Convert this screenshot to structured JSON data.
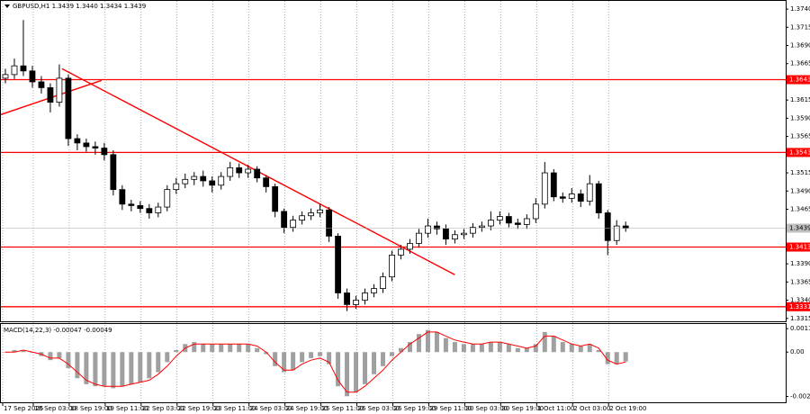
{
  "chart_data": [
    {
      "type": "candlestick",
      "title": "GBPUSD,H1  1.3439 1.3440 1.3434 1.3439",
      "xlim": [
        -0.5,
        86.8
      ],
      "xticks": [
        {
          "value": -0.3,
          "label": "17 Sep 2025"
        },
        {
          "value": 3.1,
          "label": "18 Sep 03:00"
        },
        {
          "value": 7.1,
          "label": "18 Sep 19:00"
        },
        {
          "value": 11.1,
          "label": "19 Sep 11:00"
        },
        {
          "value": 15.1,
          "label": "22 Sep 03:00"
        },
        {
          "value": 19.1,
          "label": "22 Sep 19:00"
        },
        {
          "value": 23.1,
          "label": "23 Sep 11:00"
        },
        {
          "value": 27.1,
          "label": "24 Sep 03:00"
        },
        {
          "value": 31.1,
          "label": "24 Sep 19:00"
        },
        {
          "value": 35.1,
          "label": "25 Sep 11:00"
        },
        {
          "value": 39.1,
          "label": "26 Sep 03:00"
        },
        {
          "value": 43.1,
          "label": "26 Sep 19:00"
        },
        {
          "value": 47.1,
          "label": "29 Sep 11:00"
        },
        {
          "value": 51.1,
          "label": "30 Sep 03:00"
        },
        {
          "value": 55.1,
          "label": "30 Sep 19:00"
        },
        {
          "value": 59.1,
          "label": "1 Oct 11:00"
        },
        {
          "value": 63.1,
          "label": "2 Oct 03:00"
        },
        {
          "value": 67.1,
          "label": "2 Oct 19:00"
        }
      ],
      "ylim": [
        1.3311,
        1.375
      ],
      "yticks": [
        {
          "value": 1.374,
          "label": "1.3740"
        },
        1.3715,
        {
          "value": 1.369,
          "label": "1.3690"
        },
        1.3665,
        1.3615,
        {
          "value": 1.359,
          "label": "1.3590"
        },
        1.3565,
        1.3515,
        {
          "value": 1.349,
          "label": "1.3490"
        },
        1.3465,
        {
          "value": 1.339,
          "label": "1.3390"
        },
        1.3365,
        {
          "value": 1.334,
          "label": "1.3340"
        },
        1.3315
      ],
      "levels": [
        1.3643,
        1.3543,
        1.3413,
        1.3331
      ],
      "level_color": "#ff0000",
      "trendlines": [
        {
          "x": [
            -0.5,
            10.7
          ],
          "y": [
            1.3595,
            1.3642
          ]
        },
        {
          "x": [
            6.3,
            50
          ],
          "y": [
            1.3658,
            1.3375
          ]
        }
      ],
      "color": "#000000",
      "open": [
        1.3645,
        1.365,
        1.3662,
        1.3655,
        1.364,
        1.3632,
        1.3612,
        1.3645,
        1.3562,
        1.3556,
        1.3551,
        1.3549,
        1.354,
        1.3492,
        1.3472,
        1.347,
        1.3466,
        1.346,
        1.3468,
        1.3492,
        1.35,
        1.3506,
        1.351,
        1.3504,
        1.3498,
        1.351,
        1.3522,
        1.3515,
        1.352,
        1.3508,
        1.3496,
        1.3462,
        1.344,
        1.345,
        1.3456,
        1.346,
        1.3464,
        1.3428,
        1.335,
        1.3334,
        1.334,
        1.335,
        1.3356,
        1.3372,
        1.3402,
        1.341,
        1.3418,
        1.3432,
        1.3442,
        1.3438,
        1.3424,
        1.343,
        1.3432,
        1.344,
        1.3442,
        1.345,
        1.3455,
        1.3446,
        1.3444,
        1.3452,
        1.3472,
        1.3515,
        1.3482,
        1.348,
        1.3486,
        1.3476,
        1.35,
        1.346,
        1.3422,
        1.3442
      ],
      "high": [
        1.3658,
        1.3672,
        1.3725,
        1.3662,
        1.3648,
        1.3638,
        1.3664,
        1.365,
        1.3568,
        1.3562,
        1.3558,
        1.3556,
        1.3546,
        1.3498,
        1.3478,
        1.3476,
        1.3472,
        1.3474,
        1.3498,
        1.3508,
        1.3514,
        1.3516,
        1.3518,
        1.351,
        1.3516,
        1.353,
        1.3528,
        1.3526,
        1.3524,
        1.3512,
        1.35,
        1.3466,
        1.3456,
        1.3462,
        1.3466,
        1.3472,
        1.3468,
        1.3432,
        1.3356,
        1.3346,
        1.3356,
        1.3362,
        1.3378,
        1.3408,
        1.3416,
        1.3424,
        1.3438,
        1.3452,
        1.3448,
        1.3444,
        1.3436,
        1.3438,
        1.3446,
        1.3448,
        1.3462,
        1.3462,
        1.346,
        1.3452,
        1.3458,
        1.348,
        1.353,
        1.352,
        1.3488,
        1.3494,
        1.3492,
        1.3512,
        1.3504,
        1.3464,
        1.345,
        1.3448
      ],
      "low": [
        1.3638,
        1.3644,
        1.3648,
        1.3632,
        1.3624,
        1.3598,
        1.3606,
        1.3552,
        1.3546,
        1.3544,
        1.354,
        1.3532,
        1.3484,
        1.3464,
        1.3462,
        1.346,
        1.3452,
        1.3454,
        1.3462,
        1.3486,
        1.3494,
        1.3498,
        1.3496,
        1.3488,
        1.3492,
        1.3504,
        1.3508,
        1.3508,
        1.3502,
        1.3488,
        1.3454,
        1.3432,
        1.3434,
        1.3444,
        1.345,
        1.3454,
        1.342,
        1.3342,
        1.3325,
        1.3328,
        1.3334,
        1.3344,
        1.335,
        1.3366,
        1.3396,
        1.3404,
        1.3412,
        1.3426,
        1.343,
        1.3416,
        1.3418,
        1.3424,
        1.3426,
        1.3434,
        1.3436,
        1.3444,
        1.344,
        1.3438,
        1.3438,
        1.3446,
        1.3466,
        1.3476,
        1.3474,
        1.3474,
        1.3468,
        1.347,
        1.3452,
        1.3402,
        1.3416,
        1.3434
      ],
      "close": [
        1.365,
        1.3662,
        1.3655,
        1.364,
        1.3632,
        1.3612,
        1.3645,
        1.3562,
        1.3556,
        1.3551,
        1.3549,
        1.354,
        1.3492,
        1.3472,
        1.347,
        1.3466,
        1.346,
        1.3468,
        1.3492,
        1.35,
        1.3506,
        1.351,
        1.3504,
        1.3498,
        1.351,
        1.3522,
        1.3515,
        1.352,
        1.3508,
        1.3496,
        1.3462,
        1.344,
        1.345,
        1.3456,
        1.346,
        1.3464,
        1.3428,
        1.335,
        1.3334,
        1.334,
        1.335,
        1.3356,
        1.3372,
        1.3402,
        1.341,
        1.3418,
        1.3432,
        1.3442,
        1.3438,
        1.3424,
        1.343,
        1.3432,
        1.344,
        1.3442,
        1.345,
        1.3455,
        1.3446,
        1.3444,
        1.3452,
        1.3472,
        1.3515,
        1.3482,
        1.348,
        1.3486,
        1.3476,
        1.35,
        1.346,
        1.3422,
        1.3442,
        1.3439
      ]
    },
    {
      "type": "bar",
      "title": "MACD(14,22,3) -0.00047 -0.00049",
      "ylim": [
        -0.0025,
        0.0014
      ],
      "yticks": [
        0.00117,
        {
          "value": 0,
          "label": "0.00"
        },
        -0.00221
      ],
      "color": "#a0a0a0",
      "signal_color": "#ff0000",
      "values": [
        0,
        0.0001,
        0.0001,
        0,
        -0.0002,
        -0.0004,
        -0.0003,
        -0.0008,
        -0.0013,
        -0.0016,
        -0.0017,
        -0.0017,
        -0.0018,
        -0.0017,
        -0.0016,
        -0.0015,
        -0.0013,
        -0.001,
        -0.0005,
        0.0001,
        0.0004,
        0.0005,
        0.0004,
        0.0004,
        0.0004,
        0.0004,
        0.0004,
        0.0004,
        0.0002,
        -0.0001,
        -0.0007,
        -0.001,
        -0.0009,
        -0.0005,
        -0.0003,
        -0.0002,
        -0.0006,
        -0.0017,
        -0.0022,
        -0.002,
        -0.0016,
        -0.0011,
        -0.0007,
        -0.0002,
        0.0002,
        0.0005,
        0.0009,
        0.0011,
        0.001,
        0.0007,
        0.0005,
        0.0004,
        0.0004,
        0.0004,
        0.0005,
        0.0005,
        0.0004,
        0.0002,
        0.0002,
        0.0004,
        0.001,
        0.0008,
        0.0005,
        0.0004,
        0.0003,
        0.0004,
        0.0001,
        -0.0006,
        -0.0006,
        -0.00047
      ],
      "signal": [
        0,
        0,
        0.0001,
        0,
        -0.0001,
        -0.0003,
        -0.0003,
        -0.0006,
        -0.001,
        -0.0014,
        -0.0016,
        -0.0017,
        -0.0017,
        -0.0017,
        -0.0016,
        -0.0015,
        -0.0014,
        -0.0011,
        -0.0007,
        -0.0002,
        0.0002,
        0.0004,
        0.0004,
        0.0004,
        0.0004,
        0.0004,
        0.0004,
        0.0004,
        0.0003,
        0,
        -0.0005,
        -0.0009,
        -0.0009,
        -0.0006,
        -0.0004,
        -0.0003,
        -0.0005,
        -0.0014,
        -0.002,
        -0.002,
        -0.0017,
        -0.0013,
        -0.0009,
        -0.0004,
        0,
        0.0004,
        0.0007,
        0.001,
        0.001,
        0.0008,
        0.0006,
        0.0005,
        0.0004,
        0.0004,
        0.0005,
        0.0005,
        0.0004,
        0.0003,
        0.0002,
        0.0003,
        0.0008,
        0.0008,
        0.0006,
        0.0004,
        0.0003,
        0.0004,
        0.0002,
        -0.0004,
        -0.0006,
        -0.00049
      ]
    }
  ]
}
